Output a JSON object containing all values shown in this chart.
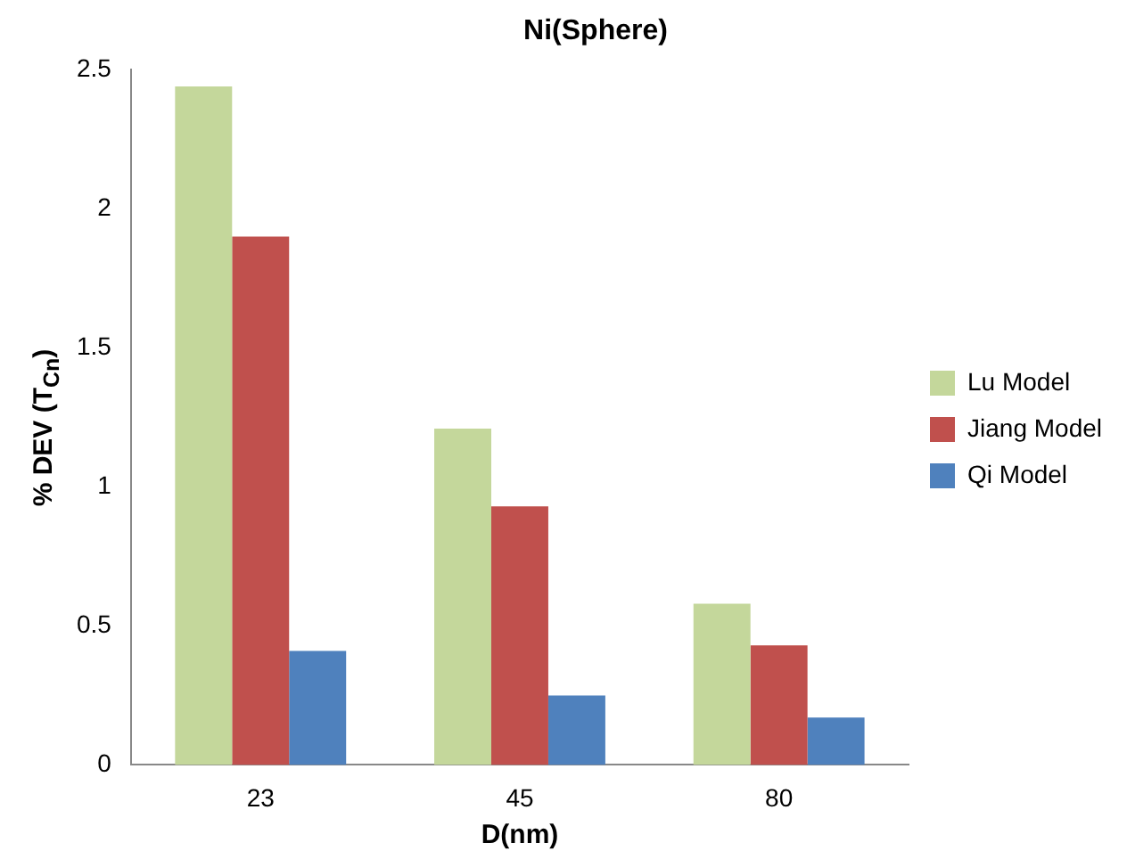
{
  "chart_data": {
    "type": "bar",
    "title": "Ni(Sphere)",
    "xlabel": "D(nm)",
    "ylabel": "% DEV  (T$_{Cn}$)",
    "categories": [
      "23",
      "45",
      "80"
    ],
    "series": [
      {
        "name": "Lu Model",
        "color": "#c4d79b",
        "values": [
          2.44,
          1.21,
          0.58
        ]
      },
      {
        "name": "Jiang Model",
        "color": "#c0504d",
        "values": [
          1.9,
          0.93,
          0.43
        ]
      },
      {
        "name": "Qi Model",
        "color": "#4f81bd",
        "values": [
          0.41,
          0.25,
          0.17
        ]
      }
    ],
    "ylim": [
      0,
      2.5
    ],
    "yticks": [
      0,
      0.5,
      1,
      1.5,
      2,
      2.5
    ],
    "grid": false,
    "legend": "right"
  }
}
